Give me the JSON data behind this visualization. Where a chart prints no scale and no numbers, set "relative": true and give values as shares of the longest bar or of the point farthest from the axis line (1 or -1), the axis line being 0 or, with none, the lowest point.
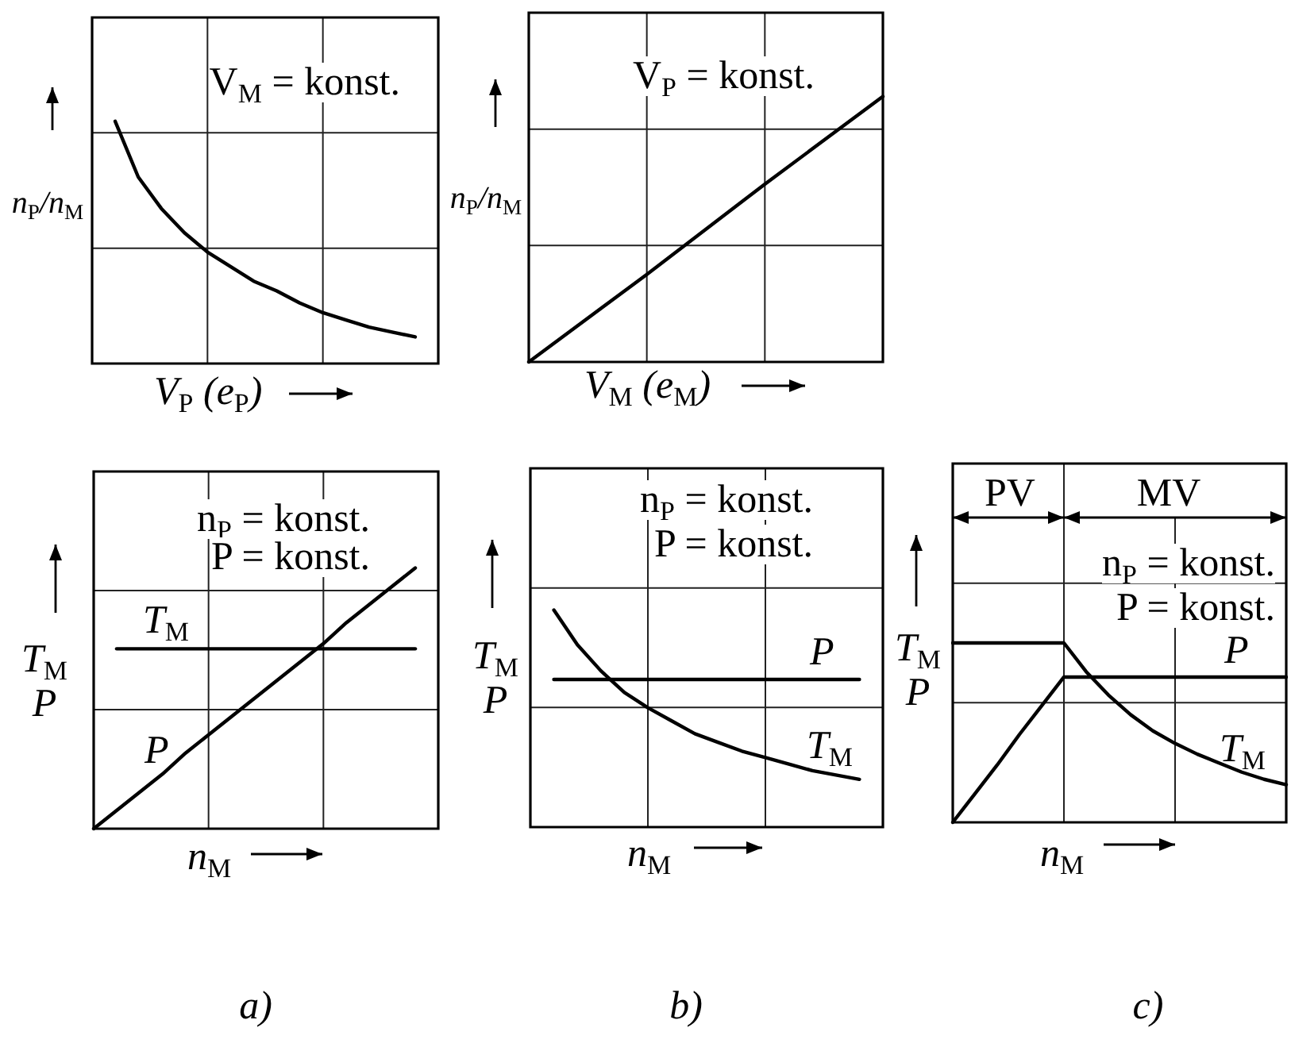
{
  "chart_data": [
    {
      "type": "line",
      "xlabel": "V$_{P}$ (e$_{P}$)",
      "ylabel": "n$_{P}$/n$_{M}$",
      "annotations": [
        "V$_{M}$ = konst."
      ],
      "categories": [
        null,
        null,
        null,
        null,
        null,
        null,
        null,
        null,
        null,
        null,
        null,
        null,
        null,
        null,
        null,
        null
      ],
      "values": [
        null,
        1,
        0.77,
        0.64,
        0.54,
        0.46,
        0.4,
        0.34,
        0.3,
        0.25,
        0.21,
        0.18,
        0.15,
        0.13,
        0.11,
        null
      ],
      "color": "#000000",
      "relative": true,
      "grid": true,
      "marker": "none"
    },
    {
      "type": "line",
      "xlabel": "V$_{M}$ (e$_{M}$)",
      "ylabel": "n$_{P}$/n$_{M}$",
      "annotations": [
        "V$_{P}$ = konst."
      ],
      "categories": [
        null,
        null,
        null,
        null
      ],
      "values": [
        0,
        0.33,
        0.67,
        1
      ],
      "color": "#000000",
      "relative": true,
      "grid": true,
      "marker": "none"
    },
    {
      "type": "line",
      "xlabel": "n$_{M}$",
      "ylabel": "T$_{M}$ P",
      "annotations": [
        "n$_{P}$ = konst.",
        "P = konst.",
        "a)"
      ],
      "categories": [
        null,
        null,
        null,
        null,
        null,
        null,
        null,
        null,
        null,
        null,
        null,
        null,
        null,
        null,
        null,
        null
      ],
      "series": [
        {
          "name": "T$_{M}$",
          "color": "#000000",
          "values": [
            null,
            0.69,
            0.69,
            0.69,
            0.69,
            0.69,
            0.69,
            0.69,
            0.69,
            0.69,
            0.69,
            0.69,
            0.69,
            0.69,
            0.69,
            null
          ]
        },
        {
          "name": "P",
          "color": "#000000",
          "values": [
            0,
            0.07,
            0.14,
            0.21,
            0.29,
            0.36,
            0.43,
            0.5,
            0.57,
            0.64,
            0.71,
            0.79,
            0.86,
            0.93,
            1,
            null
          ]
        }
      ],
      "relative": true,
      "grid": true,
      "marker": "none"
    },
    {
      "type": "line",
      "xlabel": "n$_{M}$",
      "ylabel": "T$_{M}$ P",
      "annotations": [
        "n$_{P}$ = konst.",
        "P = konst.",
        "b)"
      ],
      "categories": [
        null,
        null,
        null,
        null,
        null,
        null,
        null,
        null,
        null,
        null,
        null,
        null,
        null,
        null,
        null,
        null
      ],
      "series": [
        {
          "name": "T$_{M}$",
          "color": "#000000",
          "values": [
            null,
            1,
            0.84,
            0.72,
            0.62,
            0.55,
            0.49,
            0.43,
            0.39,
            0.35,
            0.32,
            0.29,
            0.26,
            0.24,
            0.22,
            null
          ]
        },
        {
          "name": "P",
          "color": "#000000",
          "values": [
            null,
            0.68,
            0.68,
            0.68,
            0.68,
            0.68,
            0.68,
            0.68,
            0.68,
            0.68,
            0.68,
            0.68,
            0.68,
            0.68,
            0.68,
            null
          ]
        }
      ],
      "relative": true,
      "grid": true,
      "marker": "none"
    },
    {
      "type": "line",
      "xlabel": "n$_{M}$",
      "ylabel": "T$_{M}$ P",
      "annotations": [
        "PV",
        "MV",
        "n$_{P}$ = konst.",
        "P = konst.",
        "c)"
      ],
      "categories": [
        null,
        null,
        null,
        null,
        null,
        null,
        null,
        null,
        null,
        null,
        null,
        null,
        null,
        null,
        null,
        null
      ],
      "series": [
        {
          "name": "T$_{M}$",
          "color": "#000000",
          "values": [
            1,
            1,
            1,
            1,
            1,
            1,
            0.84,
            0.71,
            0.6,
            0.51,
            0.44,
            0.38,
            0.33,
            0.28,
            0.24,
            0.21
          ]
        },
        {
          "name": "P",
          "color": "#000000",
          "values": [
            0,
            0.16,
            0.32,
            0.49,
            0.65,
            0.81,
            0.81,
            0.81,
            0.81,
            0.81,
            0.81,
            0.81,
            0.81,
            0.81,
            0.81,
            0.81
          ]
        }
      ],
      "relative": true,
      "grid": true,
      "marker": "none"
    }
  ]
}
